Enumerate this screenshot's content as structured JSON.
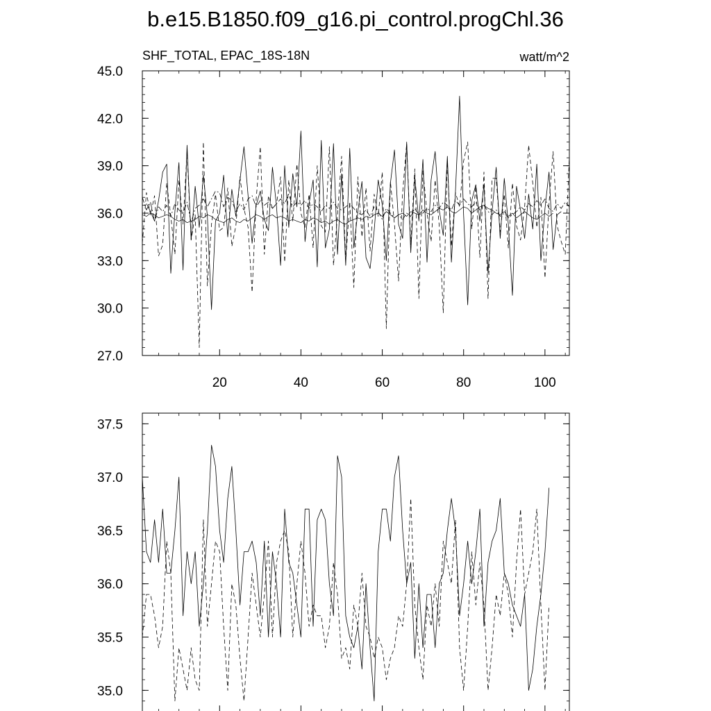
{
  "figure": {
    "title": "b.e15.B1850.f09_g16.pi_control.progChl.36"
  },
  "chart_data": [
    {
      "type": "line",
      "title": "b.e15.B1850.f09_g16.pi_control.progChl.36",
      "left_label": "SHF_TOTAL, EPAC_18S-18N",
      "right_label": "watt/m^2",
      "xlim": [
        1,
        106
      ],
      "ylim": [
        27.0,
        45.0
      ],
      "y_ticks": [
        27.0,
        30.0,
        33.0,
        36.0,
        39.0,
        42.0,
        45.0
      ],
      "y_tick_labels": [
        "27.0",
        "30.0",
        "33.0",
        "36.0",
        "39.0",
        "42.0",
        "45.0"
      ],
      "x_ticks": [
        20,
        40,
        60,
        80,
        100
      ],
      "x_tick_labels": [
        "20",
        "40",
        "60",
        "80",
        "100"
      ],
      "grid": false,
      "series": [
        {
          "style": "solid",
          "x_start": 2,
          "values": [
            36.6,
            36.1,
            35.5,
            36.8,
            38.6,
            39.1,
            32.2,
            36.1,
            39.2,
            32.4,
            40.3,
            34.3,
            37.7,
            35.1,
            38.4,
            35.8,
            29.9,
            35.5,
            36.0,
            38.4,
            34.5,
            37.5,
            35.8,
            38.1,
            40.2,
            37.1,
            34.1,
            36.5,
            37.4,
            35.6,
            34.9,
            38.9,
            36.4,
            32.7,
            39.0,
            35.1,
            38.5,
            36.4,
            41.2,
            34.2,
            36.6,
            38.1,
            32.6,
            40.6,
            33.8,
            35.0,
            40.4,
            33.4,
            38.5,
            32.7,
            40.1,
            33.8,
            36.1,
            38.0,
            33.2,
            32.5,
            34.9,
            38.1,
            36.5,
            33.0,
            37.9,
            40.0,
            35.3,
            34.4,
            40.5,
            33.5,
            38.3,
            35.5,
            39.4,
            32.9,
            38.1,
            39.9,
            36.2,
            34.6,
            39.6,
            32.9,
            37.4,
            43.4,
            35.9,
            30.2,
            36.8,
            37.8,
            35.5,
            37.8,
            32.2,
            36.1,
            38.9,
            34.4,
            38.2,
            35.3,
            30.8,
            37.7,
            36.2,
            34.4,
            37.2,
            35.0,
            39.1,
            33.0,
            36.3,
            38.6,
            33.7,
            35.9,
            36.1
          ]
        },
        {
          "style": "dashed",
          "x_start": 1,
          "values": [
            34.1,
            37.3,
            35.9,
            37.1,
            33.3,
            34.0,
            37.9,
            35.8,
            33.4,
            38.1,
            35.3,
            39.9,
            34.3,
            35.9,
            27.5,
            40.5,
            31.4,
            35.3,
            37.2,
            34.9,
            35.1,
            37.6,
            33.9,
            35.2,
            38.3,
            36.3,
            35.1,
            31.0,
            36.9,
            40.2,
            33.4,
            37.1,
            36.3,
            36.6,
            38.3,
            32.9,
            38.1,
            35.5,
            39.1,
            36.0,
            35.1,
            37.2,
            33.8,
            39.0,
            35.2,
            34.8,
            40.2,
            32.7,
            35.9,
            39.6,
            33.0,
            36.7,
            31.3,
            38.3,
            34.5,
            37.6,
            33.6,
            37.2,
            35.8,
            38.6,
            28.7,
            38.0,
            35.3,
            31.7,
            37.3,
            40.4,
            34.0,
            38.8,
            30.6,
            38.7,
            36.0,
            34.2,
            38.1,
            35.2,
            29.7,
            39.2,
            33.9,
            37.3,
            36.4,
            39.3,
            40.5,
            35.0,
            37.7,
            33.2,
            38.6,
            30.6,
            38.2,
            38.2,
            34.8,
            37.2,
            33.8,
            37.9,
            35.2,
            34.3,
            36.4,
            40.3,
            37.9,
            35.1,
            37.0,
            31.9,
            36.6,
            39.9,
            35.2,
            34.2,
            33.4,
            39.6
          ]
        },
        {
          "style": "dashdot",
          "x_start": 1,
          "values": [
            37.0,
            36.2,
            36.7,
            35.5,
            36.4,
            36.1,
            36.5,
            35.8,
            36.6,
            36.2,
            36.0,
            36.7,
            35.4,
            36.3,
            36.5,
            36.9,
            36.4,
            36.9,
            37.4,
            37.3,
            36.4,
            37.0,
            36.8,
            36.1,
            36.6,
            36.2,
            36.9,
            37.1,
            36.4,
            36.8,
            36.5,
            36.7,
            36.3,
            36.6,
            36.9,
            36.6,
            37.2,
            36.4,
            36.7,
            36.5,
            36.8,
            36.3,
            36.6,
            36.4,
            36.1,
            36.5,
            36.3,
            36.7,
            36.3,
            36.2,
            36.4,
            36.6,
            36.3,
            36.0,
            35.9,
            36.2,
            35.8,
            36.4,
            36.1,
            35.6,
            36.3,
            36.0,
            35.7,
            35.9,
            35.6,
            36.0,
            35.8,
            36.3,
            35.9,
            36.0,
            36.3,
            36.1,
            36.5,
            36.3,
            36.7,
            36.5,
            36.2,
            36.8,
            36.5,
            36.9,
            36.6,
            36.4,
            36.7,
            36.2,
            36.5,
            36.1,
            35.9,
            36.2,
            35.8,
            36.0,
            35.7,
            35.9,
            36.1,
            36.4,
            36.2,
            36.6,
            36.4,
            36.8,
            36.5,
            36.9,
            36.3,
            36.1,
            36.6,
            36.3,
            36.7,
            36.4
          ]
        },
        {
          "style": "solid-thin",
          "x_start": 1,
          "values": [
            35.9,
            35.8,
            36.0,
            35.9,
            35.7,
            35.8,
            35.9,
            35.8,
            35.6,
            35.5,
            35.6,
            35.4,
            35.5,
            35.6,
            35.8,
            35.7,
            35.9,
            35.8,
            35.6,
            35.5,
            35.4,
            35.6,
            35.7,
            35.5,
            35.4,
            35.6,
            35.5,
            35.7,
            35.9,
            35.8,
            35.6,
            35.8,
            35.9,
            35.7,
            35.8,
            35.7,
            35.5,
            35.6,
            35.5,
            35.4,
            35.6,
            35.5,
            35.7,
            35.6,
            35.4,
            35.5,
            35.3,
            35.5,
            35.6,
            35.4,
            35.3,
            35.5,
            35.6,
            35.7,
            35.6,
            35.8,
            35.7,
            35.9,
            36.0,
            35.8,
            36.1,
            35.9,
            35.7,
            35.9,
            36.0,
            35.8,
            36.1,
            36.0,
            35.9,
            36.2,
            36.0,
            35.9,
            36.1,
            36.3,
            36.2,
            36.4,
            36.1,
            36.0,
            36.2,
            36.4,
            36.3,
            36.0,
            36.2,
            36.4,
            36.5,
            36.3,
            36.2,
            36.0,
            35.9,
            36.1,
            35.8,
            36.0,
            35.7,
            35.9,
            36.1,
            35.9,
            35.7,
            35.6,
            35.8,
            36.0,
            35.8,
            36.0
          ]
        }
      ]
    },
    {
      "type": "line",
      "xlim": [
        1,
        106
      ],
      "ylim": [
        34.8,
        37.6
      ],
      "y_ticks": [
        35.0,
        35.5,
        36.0,
        36.5,
        37.0,
        37.5
      ],
      "y_tick_labels": [
        "35.0",
        "35.5",
        "36.0",
        "36.5",
        "37.0",
        "37.5"
      ],
      "x_ticks": [
        20,
        40,
        60,
        80,
        100
      ],
      "grid": false,
      "series": [
        {
          "style": "solid",
          "x_start": 1,
          "values": [
            37.0,
            36.3,
            36.2,
            36.6,
            36.2,
            36.7,
            36.1,
            36.1,
            36.5,
            37.0,
            35.7,
            36.3,
            36.0,
            36.3,
            35.6,
            36.0,
            36.5,
            37.3,
            37.1,
            36.5,
            36.2,
            36.8,
            37.1,
            36.5,
            35.8,
            36.3,
            36.3,
            36.4,
            36.2,
            35.7,
            36.4,
            35.5,
            36.3,
            36.0,
            35.5,
            36.7,
            36.2,
            36.1,
            35.8,
            35.5,
            36.7,
            36.7,
            35.6,
            36.6,
            36.7,
            36.6,
            36.0,
            35.7,
            37.2,
            37.0,
            35.7,
            35.5,
            35.4,
            35.6,
            35.2,
            36.0,
            35.4,
            34.9,
            36.3,
            36.7,
            36.7,
            36.4,
            37.0,
            37.2,
            36.5,
            36.0,
            36.2,
            35.3,
            36.0,
            35.4,
            35.9,
            35.9,
            35.4,
            36.0,
            36.1,
            36.5,
            36.8,
            36.5,
            35.7,
            36.0,
            36.4,
            36.0,
            36.3,
            36.7,
            35.6,
            36.2,
            36.4,
            36.5,
            36.8,
            36.1,
            36.0,
            35.8,
            35.7,
            35.6,
            35.9,
            35.0,
            35.2,
            35.6,
            35.9,
            36.3,
            36.9
          ]
        },
        {
          "style": "dashed",
          "x_start": 1,
          "values": [
            35.5,
            35.9,
            35.9,
            35.7,
            35.4,
            35.6,
            36.4,
            36.1,
            34.9,
            35.4,
            35.2,
            35.0,
            35.4,
            35.1,
            35.0,
            36.6,
            35.6,
            36.0,
            36.4,
            36.3,
            35.6,
            35.0,
            36.0,
            35.8,
            35.3,
            34.9,
            35.5,
            36.1,
            35.8,
            35.5,
            35.9,
            36.4,
            35.5,
            36.2,
            36.4,
            36.5,
            36.3,
            35.5,
            36.0,
            36.4,
            36.1,
            35.6,
            35.8,
            35.7,
            35.7,
            35.4,
            35.6,
            36.2,
            35.9,
            35.3,
            35.4,
            35.2,
            35.8,
            35.6,
            36.1,
            35.6,
            35.5,
            35.3,
            35.5,
            35.4,
            35.1,
            35.3,
            35.4,
            35.7,
            35.6,
            36.0,
            36.8,
            35.8,
            35.4,
            35.1,
            35.8,
            35.6,
            36.0,
            35.6,
            36.4,
            36.2,
            36.0,
            36.6,
            35.4,
            35.0,
            35.6,
            36.3,
            35.8,
            36.2,
            35.8,
            35.0,
            35.4,
            35.9,
            35.7,
            36.1,
            35.9,
            35.5,
            36.2,
            36.7,
            35.9,
            36.1,
            36.3,
            36.7,
            35.8,
            35.0,
            35.8
          ]
        }
      ]
    }
  ]
}
